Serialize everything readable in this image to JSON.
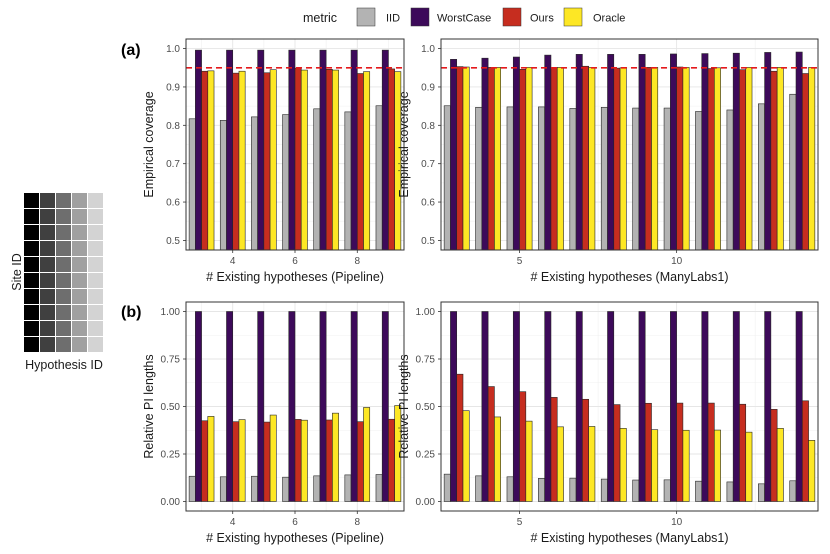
{
  "legend": {
    "title": "metric",
    "items": [
      {
        "label": "IID",
        "color": "#B3B3B3"
      },
      {
        "label": "WorstCase",
        "color": "#3D0A5A"
      },
      {
        "label": "Ours",
        "color": "#C62D1F"
      },
      {
        "label": "Oracle",
        "color": "#FDE725"
      }
    ]
  },
  "schematic": {
    "ylabel": "Site ID",
    "xlabel": "Hypothesis ID",
    "column_colors": [
      "#000000",
      "#404040",
      "#6e6e6e",
      "#a0a0a0",
      "#d3d3d3"
    ]
  },
  "panel_labels": {
    "a": "(a)",
    "b": "(b)"
  },
  "reference_line": {
    "y": 0.95,
    "color": "#E4191C"
  },
  "chart_data": [
    {
      "id": "coverage-pipeline",
      "type": "bar",
      "x": [
        3,
        4,
        5,
        6,
        7,
        8,
        9
      ],
      "xticks": [
        "4",
        "6",
        "8"
      ],
      "xtick_values": [
        4,
        6,
        8
      ],
      "xlim": [
        2.5,
        9.5
      ],
      "ylim": [
        0.475,
        1.025
      ],
      "yticks": [
        "0.5",
        "0.6",
        "0.7",
        "0.8",
        "0.9",
        "1.0"
      ],
      "ytick_values": [
        0.5,
        0.6,
        0.7,
        0.8,
        0.9,
        1.0
      ],
      "xlabel": "# Existing hypotheses (Pipeline)",
      "ylabel": "Empirical coverage",
      "hline": 0.95,
      "series": [
        {
          "name": "IID",
          "values": [
            0.817,
            0.813,
            0.822,
            0.828,
            0.843,
            0.835,
            0.851
          ]
        },
        {
          "name": "WorstCase",
          "values": [
            0.996,
            0.996,
            0.996,
            0.996,
            0.996,
            0.996,
            0.996
          ]
        },
        {
          "name": "Ours",
          "values": [
            0.941,
            0.936,
            0.937,
            0.949,
            0.946,
            0.935,
            0.947
          ]
        },
        {
          "name": "Oracle",
          "values": [
            0.942,
            0.941,
            0.945,
            0.944,
            0.944,
            0.94,
            0.94
          ]
        }
      ]
    },
    {
      "id": "coverage-manylabs",
      "type": "bar",
      "x": [
        3,
        4,
        5,
        6,
        7,
        8,
        9,
        10,
        11,
        12,
        13,
        14
      ],
      "xticks": [
        "5",
        "10"
      ],
      "xtick_values": [
        5,
        10
      ],
      "xlim": [
        2.5,
        14.5
      ],
      "ylim": [
        0.475,
        1.025
      ],
      "yticks": [
        "0.5",
        "0.6",
        "0.7",
        "0.8",
        "0.9",
        "1.0"
      ],
      "ytick_values": [
        0.5,
        0.6,
        0.7,
        0.8,
        0.9,
        1.0
      ],
      "xlabel": "# Existing hypotheses (ManyLabs1)",
      "ylabel": "Empirical coverage",
      "hline": 0.95,
      "series": [
        {
          "name": "IID",
          "values": [
            0.851,
            0.847,
            0.848,
            0.848,
            0.844,
            0.847,
            0.845,
            0.845,
            0.836,
            0.84,
            0.856,
            0.881
          ]
        },
        {
          "name": "WorstCase",
          "values": [
            0.972,
            0.975,
            0.978,
            0.983,
            0.985,
            0.985,
            0.985,
            0.986,
            0.987,
            0.988,
            0.99,
            0.991
          ]
        },
        {
          "name": "Ours",
          "values": [
            0.953,
            0.951,
            0.946,
            0.951,
            0.954,
            0.949,
            0.951,
            0.952,
            0.948,
            0.945,
            0.941,
            0.935
          ]
        },
        {
          "name": "Oracle",
          "values": [
            0.952,
            0.951,
            0.951,
            0.951,
            0.951,
            0.95,
            0.951,
            0.951,
            0.95,
            0.951,
            0.951,
            0.951
          ]
        }
      ]
    },
    {
      "id": "pi-length-pipeline",
      "type": "bar",
      "x": [
        3,
        4,
        5,
        6,
        7,
        8,
        9
      ],
      "xticks": [
        "4",
        "6",
        "8"
      ],
      "xtick_values": [
        4,
        6,
        8
      ],
      "xlim": [
        2.5,
        9.5
      ],
      "ylim": [
        -0.05,
        1.05
      ],
      "yticks": [
        "0.00",
        "0.25",
        "0.50",
        "0.75",
        "1.00"
      ],
      "ytick_values": [
        0,
        0.25,
        0.5,
        0.75,
        1.0
      ],
      "xlabel": "# Existing hypotheses (Pipeline)",
      "ylabel": "Relative PI lengths",
      "series": [
        {
          "name": "IID",
          "values": [
            0.133,
            0.13,
            0.133,
            0.128,
            0.135,
            0.14,
            0.142
          ]
        },
        {
          "name": "WorstCase",
          "values": [
            1.0,
            1.0,
            1.0,
            1.0,
            1.0,
            1.0,
            1.0
          ]
        },
        {
          "name": "Ours",
          "values": [
            0.425,
            0.42,
            0.418,
            0.432,
            0.429,
            0.42,
            0.433
          ]
        },
        {
          "name": "Oracle",
          "values": [
            0.448,
            0.431,
            0.455,
            0.428,
            0.465,
            0.495,
            0.505
          ]
        }
      ]
    },
    {
      "id": "pi-length-manylabs",
      "type": "bar",
      "x": [
        3,
        4,
        5,
        6,
        7,
        8,
        9,
        10,
        11,
        12,
        13,
        14
      ],
      "xticks": [
        "5",
        "10"
      ],
      "xtick_values": [
        5,
        10
      ],
      "xlim": [
        2.5,
        14.5
      ],
      "ylim": [
        -0.05,
        1.05
      ],
      "yticks": [
        "0.00",
        "0.25",
        "0.50",
        "0.75",
        "1.00"
      ],
      "ytick_values": [
        0,
        0.25,
        0.5,
        0.75,
        1.0
      ],
      "xlabel": "# Existing hypotheses (ManyLabs1)",
      "ylabel": "Relative PI lengths",
      "series": [
        {
          "name": "IID",
          "values": [
            0.144,
            0.135,
            0.13,
            0.122,
            0.123,
            0.118,
            0.113,
            0.114,
            0.107,
            0.103,
            0.093,
            0.109
          ]
        },
        {
          "name": "WorstCase",
          "values": [
            1.0,
            1.0,
            1.0,
            1.0,
            1.0,
            1.0,
            1.0,
            1.0,
            1.0,
            1.0,
            1.0,
            1.0
          ]
        },
        {
          "name": "Ours",
          "values": [
            0.67,
            0.605,
            0.578,
            0.548,
            0.538,
            0.51,
            0.517,
            0.518,
            0.518,
            0.512,
            0.485,
            0.53
          ]
        },
        {
          "name": "Oracle",
          "values": [
            0.478,
            0.445,
            0.423,
            0.393,
            0.395,
            0.385,
            0.378,
            0.375,
            0.376,
            0.365,
            0.385,
            0.322
          ]
        }
      ]
    }
  ]
}
